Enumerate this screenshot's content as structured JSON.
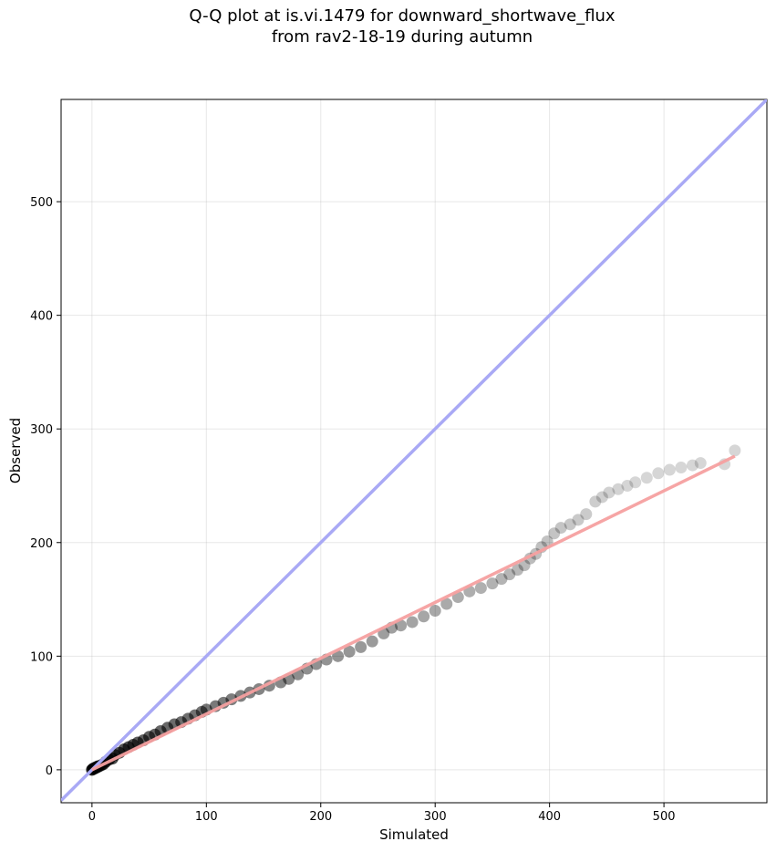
{
  "chart_data": {
    "type": "scatter",
    "title": "Q-Q plot at is.vi.1479 for downward_shortwave_flux",
    "subtitle": "from rav2-18-19 during autumn",
    "xlabel": "Simulated",
    "ylabel": "Observed",
    "xlim": [
      -27,
      590
    ],
    "ylim": [
      -29,
      590
    ],
    "x_ticks": [
      0,
      100,
      200,
      300,
      400,
      500
    ],
    "y_ticks": [
      0,
      100,
      200,
      300,
      400,
      500
    ],
    "grid": true,
    "colors": {
      "points": "#000000",
      "identity_line": "#a9a9f5",
      "fit_line": "#f5a0a0"
    },
    "identity_line": {
      "x": [
        -27,
        590
      ],
      "y": [
        -27,
        590
      ]
    },
    "fit_line": {
      "x": [
        0,
        562
      ],
      "y": [
        0,
        276
      ]
    },
    "points": {
      "x": [
        0,
        1,
        2,
        3,
        4,
        5,
        6,
        8,
        10,
        12,
        15,
        18,
        20,
        24,
        28,
        32,
        36,
        40,
        45,
        50,
        55,
        60,
        66,
        72,
        78,
        84,
        90,
        96,
        100,
        108,
        115,
        122,
        130,
        138,
        146,
        155,
        165,
        172,
        180,
        188,
        196,
        205,
        215,
        225,
        235,
        245,
        255,
        262,
        270,
        280,
        290,
        300,
        310,
        320,
        330,
        340,
        350,
        358,
        365,
        372,
        378,
        383,
        388,
        393,
        398,
        404,
        410,
        418,
        425,
        432,
        440,
        446,
        452,
        460,
        468,
        475,
        485,
        495,
        505,
        515,
        525,
        532,
        553,
        562
      ],
      "y": [
        0,
        1,
        1,
        2,
        2,
        3,
        3,
        4,
        5,
        7,
        9,
        10,
        13,
        15,
        18,
        20,
        22,
        24,
        26,
        29,
        31,
        34,
        37,
        40,
        42,
        45,
        48,
        51,
        53,
        56,
        59,
        62,
        65,
        68,
        71,
        74,
        77,
        80,
        84,
        89,
        93,
        97,
        100,
        104,
        108,
        113,
        120,
        125,
        127,
        130,
        135,
        140,
        146,
        152,
        157,
        160,
        164,
        168,
        172,
        176,
        180,
        186,
        190,
        196,
        201,
        208,
        213,
        216,
        220,
        225,
        236,
        240,
        244,
        247,
        250,
        253,
        257,
        261,
        264,
        266,
        268,
        270,
        269,
        281
      ]
    }
  },
  "header": {
    "title": "Q-Q plot at is.vi.1479 for downward_shortwave_flux",
    "subtitle": "from rav2-18-19 during autumn"
  }
}
